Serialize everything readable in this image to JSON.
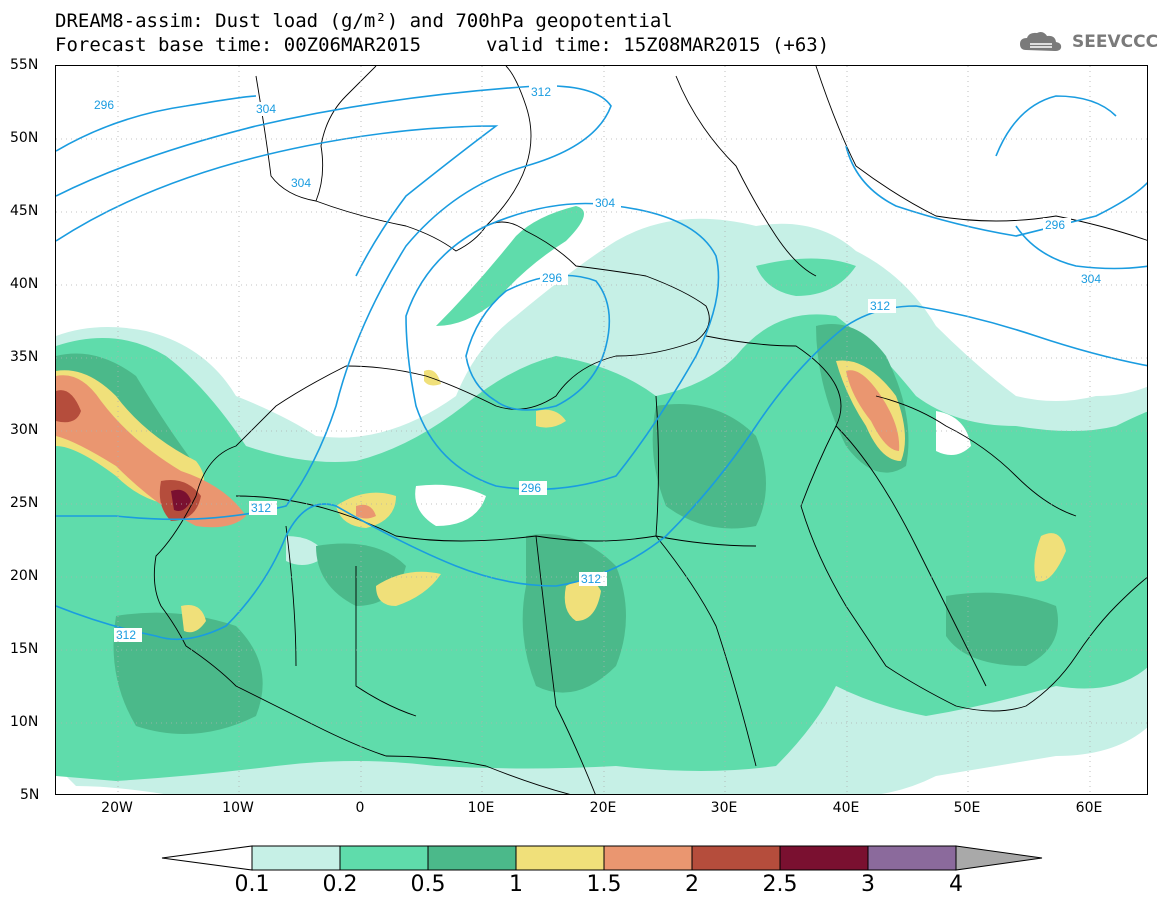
{
  "header": {
    "title_line1": "DREAM8-assim: Dust load (g/m²) and 700hPa geopotential",
    "base_time": "Forecast base time: 00Z06MAR2015",
    "valid_time": "valid time: 15Z08MAR2015 (+63)",
    "logo_text": "SEEVCCC"
  },
  "map": {
    "lat_labels": [
      "55N",
      "50N",
      "45N",
      "40N",
      "35N",
      "30N",
      "25N",
      "20N",
      "15N",
      "10N",
      "5N"
    ],
    "lon_labels": [
      "20W",
      "10W",
      "0",
      "10E",
      "20E",
      "30E",
      "40E",
      "50E",
      "60E"
    ],
    "contour_labels": [
      "296",
      "304",
      "312",
      "296",
      "304",
      "296",
      "304",
      "312",
      "312",
      "312",
      "296",
      "304",
      "312"
    ]
  },
  "colorbar": {
    "colors": [
      "#c6f0e6",
      "#5fdcab",
      "#4bb98a",
      "#f0e07a",
      "#ea9670",
      "#b54d3c",
      "#7a1030",
      "#8b6a9c"
    ],
    "labels": [
      "0.1",
      "0.2",
      "0.5",
      "1",
      "1.5",
      "2",
      "2.5",
      "3",
      "4"
    ]
  }
}
